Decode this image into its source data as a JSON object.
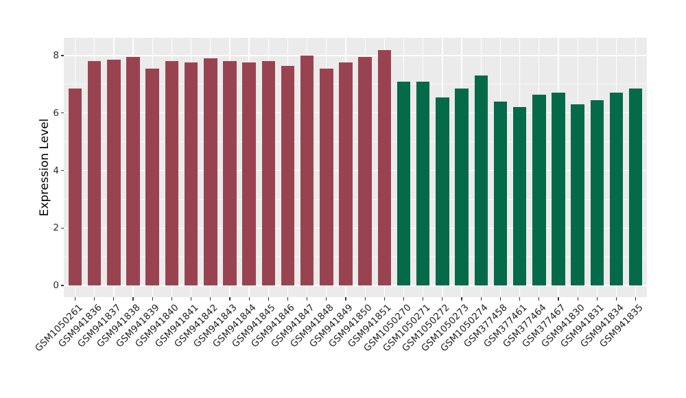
{
  "chart_data": {
    "type": "bar",
    "title": "",
    "xlabel": "",
    "ylabel": "Expression Level",
    "yticks": [
      0,
      2,
      4,
      6,
      8
    ],
    "yticks_minor": [
      1,
      3,
      5,
      7
    ],
    "ylim": [
      -0.42,
      8.63
    ],
    "legend": "none",
    "grid": "major and minor horizontal white gridlines, vertical white gridline at each category center",
    "panel_background": "#EBEBEB",
    "gridline_color": "#FFFFFF",
    "tick_color": "#333333",
    "groups": {
      "groupA": {
        "name": "left-red-group",
        "color": "#9A4350"
      },
      "groupB": {
        "name": "right-green-group",
        "color": "#046A49"
      }
    },
    "bars": [
      {
        "label": "GSM1050261",
        "value": 6.85,
        "group": "groupA"
      },
      {
        "label": "GSM941836",
        "value": 7.8,
        "group": "groupA"
      },
      {
        "label": "GSM941837",
        "value": 7.85,
        "group": "groupA"
      },
      {
        "label": "GSM941838",
        "value": 7.95,
        "group": "groupA"
      },
      {
        "label": "GSM941839",
        "value": 7.55,
        "group": "groupA"
      },
      {
        "label": "GSM941840",
        "value": 7.8,
        "group": "groupA"
      },
      {
        "label": "GSM941841",
        "value": 7.75,
        "group": "groupA"
      },
      {
        "label": "GSM941842",
        "value": 7.9,
        "group": "groupA"
      },
      {
        "label": "GSM941843",
        "value": 7.8,
        "group": "groupA"
      },
      {
        "label": "GSM941844",
        "value": 7.75,
        "group": "groupA"
      },
      {
        "label": "GSM941845",
        "value": 7.8,
        "group": "groupA"
      },
      {
        "label": "GSM941846",
        "value": 7.65,
        "group": "groupA"
      },
      {
        "label": "GSM941847",
        "value": 8.0,
        "group": "groupA"
      },
      {
        "label": "GSM941848",
        "value": 7.55,
        "group": "groupA"
      },
      {
        "label": "GSM941849",
        "value": 7.75,
        "group": "groupA"
      },
      {
        "label": "GSM941850",
        "value": 7.95,
        "group": "groupA"
      },
      {
        "label": "GSM941851",
        "value": 8.2,
        "group": "groupA"
      },
      {
        "label": "GSM1050270",
        "value": 7.1,
        "group": "groupB"
      },
      {
        "label": "GSM1050271",
        "value": 7.1,
        "group": "groupB"
      },
      {
        "label": "GSM1050272",
        "value": 6.55,
        "group": "groupB"
      },
      {
        "label": "GSM1050273",
        "value": 6.85,
        "group": "groupB"
      },
      {
        "label": "GSM1050274",
        "value": 7.3,
        "group": "groupB"
      },
      {
        "label": "GSM377458",
        "value": 6.4,
        "group": "groupB"
      },
      {
        "label": "GSM377461",
        "value": 6.2,
        "group": "groupB"
      },
      {
        "label": "GSM377464",
        "value": 6.65,
        "group": "groupB"
      },
      {
        "label": "GSM377467",
        "value": 6.7,
        "group": "groupB"
      },
      {
        "label": "GSM941830",
        "value": 6.3,
        "group": "groupB"
      },
      {
        "label": "GSM941831",
        "value": 6.45,
        "group": "groupB"
      },
      {
        "label": "GSM941834",
        "value": 6.7,
        "group": "groupB"
      },
      {
        "label": "GSM941835",
        "value": 6.85,
        "group": "groupB"
      }
    ]
  }
}
